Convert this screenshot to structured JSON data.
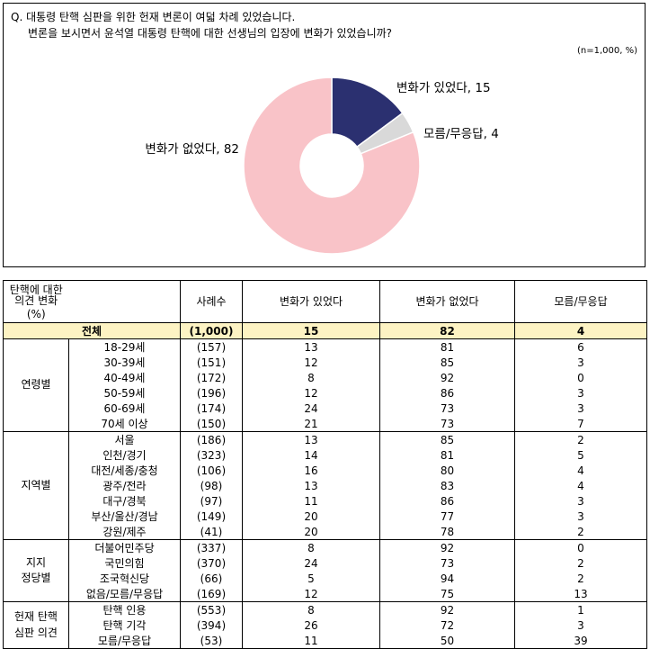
{
  "question": {
    "line1": "Q. 대통령 탄핵 심판을 위한 헌재 변론이 여덟 차례 있었습니다.",
    "line2": "변론을 보시면서 윤석열 대통령 탄핵에 대한 선생님의 입장에 변화가 있었습니까?"
  },
  "sample_note": "(n=1,000,  %)",
  "chart_data": {
    "type": "pie",
    "slices": [
      {
        "label": "변화가 있었다",
        "value": 15,
        "color": "#2b3070",
        "text": "변화가 있었다, 15"
      },
      {
        "label": "모름/무응답",
        "value": 4,
        "color": "#d9d9d9",
        "text": "모름/무응답, 4"
      },
      {
        "label": "변화가 없었다",
        "value": 82,
        "color": "#f9c3c8",
        "text": "변화가 없었다, 82"
      }
    ],
    "donut": true
  },
  "table": {
    "headers": {
      "category_line1": "탄핵에 대한 의견 변화",
      "category_line2": "(%)",
      "n": "사례수",
      "changed": "변화가 있었다",
      "not_changed": "변화가 없었다",
      "dk": "모름/무응답"
    },
    "total": {
      "label": "전체",
      "n": "(1,000)",
      "changed": "15",
      "not_changed": "82",
      "dk": "4"
    },
    "groups": [
      {
        "name": "연령별",
        "rows": [
          {
            "sub": "18-29세",
            "n": "(157)",
            "changed": "13",
            "not_changed": "81",
            "dk": "6"
          },
          {
            "sub": "30-39세",
            "n": "(151)",
            "changed": "12",
            "not_changed": "85",
            "dk": "3"
          },
          {
            "sub": "40-49세",
            "n": "(172)",
            "changed": "8",
            "not_changed": "92",
            "dk": "0"
          },
          {
            "sub": "50-59세",
            "n": "(196)",
            "changed": "12",
            "not_changed": "86",
            "dk": "3"
          },
          {
            "sub": "60-69세",
            "n": "(174)",
            "changed": "24",
            "not_changed": "73",
            "dk": "3"
          },
          {
            "sub": "70세 이상",
            "n": "(150)",
            "changed": "21",
            "not_changed": "73",
            "dk": "7"
          }
        ]
      },
      {
        "name": "지역별",
        "rows": [
          {
            "sub": "서울",
            "n": "(186)",
            "changed": "13",
            "not_changed": "85",
            "dk": "2"
          },
          {
            "sub": "인천/경기",
            "n": "(323)",
            "changed": "14",
            "not_changed": "81",
            "dk": "5"
          },
          {
            "sub": "대전/세종/충청",
            "n": "(106)",
            "changed": "16",
            "not_changed": "80",
            "dk": "4"
          },
          {
            "sub": "광주/전라",
            "n": "(98)",
            "changed": "13",
            "not_changed": "83",
            "dk": "4"
          },
          {
            "sub": "대구/경북",
            "n": "(97)",
            "changed": "11",
            "not_changed": "86",
            "dk": "3"
          },
          {
            "sub": "부산/울산/경남",
            "n": "(149)",
            "changed": "20",
            "not_changed": "77",
            "dk": "3"
          },
          {
            "sub": "강원/제주",
            "n": "(41)",
            "changed": "20",
            "not_changed": "78",
            "dk": "2"
          }
        ]
      },
      {
        "name": "지지\n정당별",
        "rows": [
          {
            "sub": "더불어민주당",
            "n": "(337)",
            "changed": "8",
            "not_changed": "92",
            "dk": "0"
          },
          {
            "sub": "국민의힘",
            "n": "(370)",
            "changed": "24",
            "not_changed": "73",
            "dk": "2"
          },
          {
            "sub": "조국혁신당",
            "n": "(66)",
            "changed": "5",
            "not_changed": "94",
            "dk": "2"
          },
          {
            "sub": "없음/모름/무응답",
            "n": "(169)",
            "changed": "12",
            "not_changed": "75",
            "dk": "13"
          }
        ]
      },
      {
        "name": "헌재 탄핵\n심판 의견",
        "rows": [
          {
            "sub": "탄핵 인용",
            "n": "(553)",
            "changed": "8",
            "not_changed": "92",
            "dk": "1"
          },
          {
            "sub": "탄핵 기각",
            "n": "(394)",
            "changed": "26",
            "not_changed": "72",
            "dk": "3"
          },
          {
            "sub": "모름/무응답",
            "n": "(53)",
            "changed": "11",
            "not_changed": "50",
            "dk": "39"
          }
        ]
      }
    ]
  }
}
